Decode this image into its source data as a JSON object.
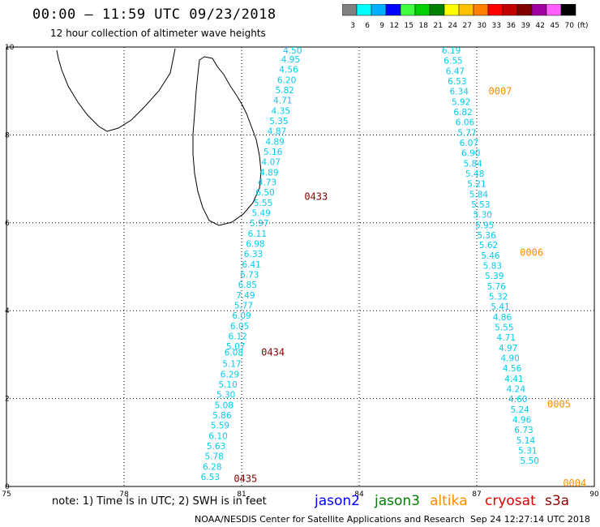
{
  "header": {
    "title": "00:00 – 11:59 UTC 09/23/2018",
    "subtitle": "12 hour collection of altimeter wave heights"
  },
  "colorbar": {
    "bins": [
      {
        "label": "3",
        "color": "#808080"
      },
      {
        "label": "6",
        "color": "#00ffff"
      },
      {
        "label": "9",
        "color": "#00b0ff"
      },
      {
        "label": "12",
        "color": "#0000ff"
      },
      {
        "label": "15",
        "color": "#40ff40"
      },
      {
        "label": "18",
        "color": "#00d000"
      },
      {
        "label": "21",
        "color": "#008000"
      },
      {
        "label": "24",
        "color": "#ffff00"
      },
      {
        "label": "27",
        "color": "#ffc000"
      },
      {
        "label": "30",
        "color": "#ff8000"
      },
      {
        "label": "33",
        "color": "#ff0000"
      },
      {
        "label": "36",
        "color": "#c00000"
      },
      {
        "label": "39",
        "color": "#800000"
      },
      {
        "label": "42",
        "color": "#a000a0"
      },
      {
        "label": "45",
        "color": "#ff60ff"
      },
      {
        "label": "70",
        "color": "#000000"
      }
    ],
    "unit": "(ft)"
  },
  "chart_data": {
    "type": "scatter",
    "xlim": [
      75,
      90
    ],
    "ylim": [
      0,
      10
    ],
    "x_ticks": [
      "75",
      "78",
      "81",
      "84",
      "87",
      "90"
    ],
    "y_ticks": [
      "0",
      "2",
      "4",
      "6",
      "8",
      "10"
    ],
    "grid": true,
    "track_color": "#00ccee",
    "label_color_s3a": "#8b0000",
    "label_color_altika": "#ff8c00",
    "tracks": [
      {
        "satellite": "s3a",
        "points": [
          {
            "x": 82.3,
            "y": 9.85,
            "v": "4.50"
          },
          {
            "x": 82.25,
            "y": 9.65,
            "v": "4.95"
          },
          {
            "x": 82.2,
            "y": 9.42,
            "v": "4.56"
          },
          {
            "x": 82.15,
            "y": 9.18,
            "v": "6.20"
          },
          {
            "x": 82.1,
            "y": 8.95,
            "v": "5.82"
          },
          {
            "x": 82.05,
            "y": 8.72,
            "v": "4.71"
          },
          {
            "x": 82.0,
            "y": 8.48,
            "v": "4.35"
          },
          {
            "x": 81.95,
            "y": 8.25,
            "v": "5.35"
          },
          {
            "x": 81.9,
            "y": 8.02,
            "v": "4.87"
          },
          {
            "x": 81.85,
            "y": 7.78,
            "v": "4.89"
          },
          {
            "x": 81.8,
            "y": 7.55,
            "v": "5.16"
          },
          {
            "x": 81.75,
            "y": 7.32,
            "v": "4.07"
          },
          {
            "x": 81.7,
            "y": 7.08,
            "v": "4.89"
          },
          {
            "x": 81.65,
            "y": 6.85,
            "v": "4.73"
          },
          {
            "x": 81.6,
            "y": 6.62,
            "v": "6.50"
          },
          {
            "x": 81.55,
            "y": 6.38,
            "v": "5.55"
          },
          {
            "x": 81.5,
            "y": 6.15,
            "v": "5.49"
          },
          {
            "x": 81.45,
            "y": 5.92,
            "v": "5.97"
          },
          {
            "x": 81.4,
            "y": 5.68,
            "v": "6.11"
          },
          {
            "x": 81.35,
            "y": 5.45,
            "v": "6.98"
          },
          {
            "x": 81.3,
            "y": 5.22,
            "v": "6.33"
          },
          {
            "x": 81.25,
            "y": 4.98,
            "v": "6.41"
          },
          {
            "x": 81.2,
            "y": 4.75,
            "v": "6.73"
          },
          {
            "x": 81.15,
            "y": 4.52,
            "v": "6.85"
          },
          {
            "x": 81.1,
            "y": 4.28,
            "v": "7.49"
          },
          {
            "x": 81.05,
            "y": 4.05,
            "v": "5.77"
          },
          {
            "x": 81.0,
            "y": 3.82,
            "v": "6.09"
          },
          {
            "x": 80.95,
            "y": 3.58,
            "v": "6.05"
          },
          {
            "x": 80.9,
            "y": 3.35,
            "v": "6.12"
          },
          {
            "x": 80.85,
            "y": 3.12,
            "v": "5.07"
          },
          {
            "x": 80.8,
            "y": 2.98,
            "v": "6.08"
          },
          {
            "x": 80.75,
            "y": 2.72,
            "v": "5.17"
          },
          {
            "x": 80.7,
            "y": 2.48,
            "v": "6.29"
          },
          {
            "x": 80.65,
            "y": 2.25,
            "v": "5.10"
          },
          {
            "x": 80.6,
            "y": 2.02,
            "v": "5.30"
          },
          {
            "x": 80.55,
            "y": 1.78,
            "v": "5.08"
          },
          {
            "x": 80.5,
            "y": 1.55,
            "v": "5.86"
          },
          {
            "x": 80.45,
            "y": 1.32,
            "v": "5.59"
          },
          {
            "x": 80.4,
            "y": 1.08,
            "v": "6.10"
          },
          {
            "x": 80.35,
            "y": 0.85,
            "v": "5.63"
          },
          {
            "x": 80.3,
            "y": 0.62,
            "v": "5.78"
          },
          {
            "x": 80.25,
            "y": 0.38,
            "v": "6.28"
          },
          {
            "x": 80.2,
            "y": 0.15,
            "v": "6.53"
          }
        ],
        "time_labels": [
          {
            "x": 82.6,
            "y": 6.52,
            "t": "0433"
          },
          {
            "x": 81.5,
            "y": 2.98,
            "t": "0434"
          },
          {
            "x": 80.8,
            "y": 0.1,
            "t": "0435"
          }
        ]
      },
      {
        "satellite": "altika",
        "points": [
          {
            "x": 86.35,
            "y": 9.85,
            "v": "6.19"
          },
          {
            "x": 86.4,
            "y": 9.62,
            "v": "6.55"
          },
          {
            "x": 86.45,
            "y": 9.38,
            "v": "6.47"
          },
          {
            "x": 86.5,
            "y": 9.15,
            "v": "6.53"
          },
          {
            "x": 86.55,
            "y": 8.92,
            "v": "6.34"
          },
          {
            "x": 86.6,
            "y": 8.68,
            "v": "5.92"
          },
          {
            "x": 86.65,
            "y": 8.45,
            "v": "6.82"
          },
          {
            "x": 86.7,
            "y": 8.22,
            "v": "6.06"
          },
          {
            "x": 86.75,
            "y": 7.98,
            "v": "5.77"
          },
          {
            "x": 86.8,
            "y": 7.75,
            "v": "6.07"
          },
          {
            "x": 86.85,
            "y": 7.52,
            "v": "6.90"
          },
          {
            "x": 86.9,
            "y": 7.28,
            "v": "5.84"
          },
          {
            "x": 86.95,
            "y": 7.05,
            "v": "5.48"
          },
          {
            "x": 87.0,
            "y": 6.82,
            "v": "5.21"
          },
          {
            "x": 87.05,
            "y": 6.58,
            "v": "5.84"
          },
          {
            "x": 87.1,
            "y": 6.35,
            "v": "5.53"
          },
          {
            "x": 87.15,
            "y": 6.12,
            "v": "5.30"
          },
          {
            "x": 87.2,
            "y": 5.88,
            "v": "5.95"
          },
          {
            "x": 87.25,
            "y": 5.65,
            "v": "5.36"
          },
          {
            "x": 87.3,
            "y": 5.42,
            "v": "5.62"
          },
          {
            "x": 87.35,
            "y": 5.18,
            "v": "5.46"
          },
          {
            "x": 87.4,
            "y": 4.95,
            "v": "5.83"
          },
          {
            "x": 87.45,
            "y": 4.72,
            "v": "5.39"
          },
          {
            "x": 87.5,
            "y": 4.48,
            "v": "5.76"
          },
          {
            "x": 87.55,
            "y": 4.25,
            "v": "5.32"
          },
          {
            "x": 87.6,
            "y": 4.02,
            "v": "5.41"
          },
          {
            "x": 87.65,
            "y": 3.78,
            "v": "4.86"
          },
          {
            "x": 87.7,
            "y": 3.55,
            "v": "5.55"
          },
          {
            "x": 87.75,
            "y": 3.32,
            "v": "4.71"
          },
          {
            "x": 87.8,
            "y": 3.08,
            "v": "4.97"
          },
          {
            "x": 87.85,
            "y": 2.85,
            "v": "4.90"
          },
          {
            "x": 87.9,
            "y": 2.62,
            "v": "4.56"
          },
          {
            "x": 87.95,
            "y": 2.38,
            "v": "4.41"
          },
          {
            "x": 88.0,
            "y": 2.15,
            "v": "4.24"
          },
          {
            "x": 88.05,
            "y": 1.92,
            "v": "4.60"
          },
          {
            "x": 88.1,
            "y": 1.68,
            "v": "5.24"
          },
          {
            "x": 88.15,
            "y": 1.45,
            "v": "4.96"
          },
          {
            "x": 88.2,
            "y": 1.22,
            "v": "6.73"
          },
          {
            "x": 88.25,
            "y": 0.98,
            "v": "5.14"
          },
          {
            "x": 88.3,
            "y": 0.75,
            "v": "5.31"
          },
          {
            "x": 88.35,
            "y": 0.52,
            "v": "5.50"
          }
        ],
        "time_labels": [
          {
            "x": 87.3,
            "y": 8.92,
            "t": "0007"
          },
          {
            "x": 88.1,
            "y": 5.25,
            "t": "0006"
          },
          {
            "x": 88.8,
            "y": 1.8,
            "t": "0005"
          },
          {
            "x": 89.2,
            "y": 0.0,
            "t": "0004"
          }
        ]
      }
    ]
  },
  "footer": {
    "note": "note: 1) Time is in UTC; 2) SWH is in feet",
    "legend": [
      {
        "label": "jason2",
        "color": "#0000ff"
      },
      {
        "label": "jason3",
        "color": "#008000"
      },
      {
        "label": "altika",
        "color": "#ff8c00"
      },
      {
        "label": "cryosat",
        "color": "#dd0000"
      },
      {
        "label": "s3a",
        "color": "#8b0000"
      }
    ],
    "credit": "NOAA/NESDIS Center for Satellite Applications and Research",
    "timestamp": "Sep 24 12:27:14 UTC 2018"
  }
}
